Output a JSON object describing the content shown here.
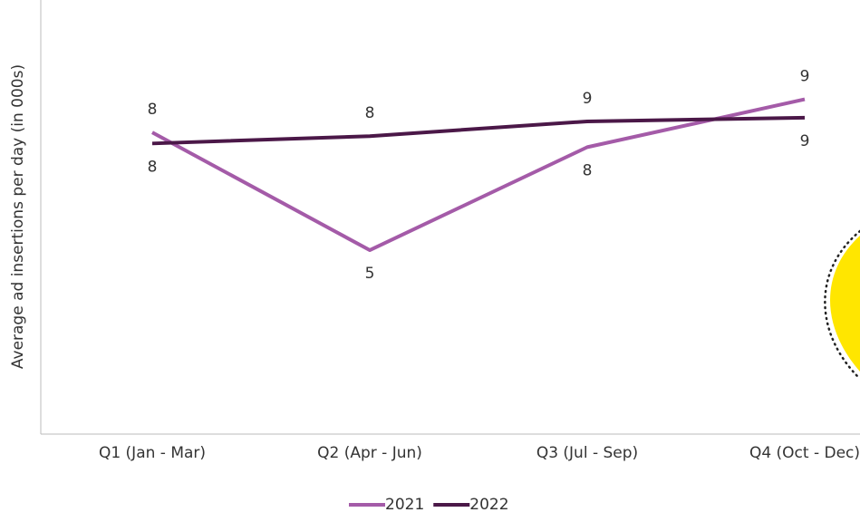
{
  "chart_data": {
    "type": "line",
    "y_label": "Average ad insertions per day (in 000s)",
    "categories": [
      "Q1 (Jan - Mar)",
      "Q2 (Apr - Jun)",
      "Q3 (Jul - Sep)",
      "Q4 (Oct - Dec)"
    ],
    "series": [
      {
        "name": "2021",
        "color": "#a45ba8",
        "values": [
          8.2,
          5.0,
          7.8,
          9.1
        ],
        "value_labels": [
          "8",
          "5",
          "8",
          "9"
        ]
      },
      {
        "name": "2022",
        "color": "#4b1848",
        "values": [
          7.9,
          8.1,
          8.5,
          8.6
        ],
        "value_labels": [
          "8",
          "8",
          "9",
          "9"
        ]
      }
    ],
    "ylim": [
      0,
      11.8
    ],
    "grid": false,
    "legend": "bottom"
  }
}
